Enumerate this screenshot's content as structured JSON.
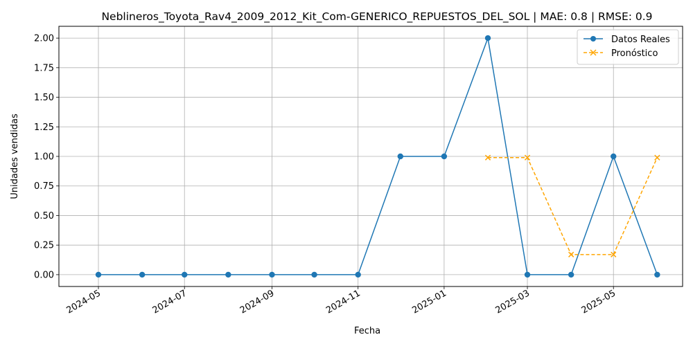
{
  "chart_data": {
    "type": "line",
    "title": "Neblineros_Toyota_Rav4_2009_2012_Kit_Com-GENERICO_REPUESTOS_DEL_SOL | MAE: 0.8 | RMSE: 0.9",
    "xlabel": "Fecha",
    "ylabel": "Unidades vendidas",
    "ylim": [
      -0.1,
      2.1
    ],
    "yticks": [
      "0.00",
      "0.25",
      "0.50",
      "0.75",
      "1.00",
      "1.25",
      "1.50",
      "1.75",
      "2.00"
    ],
    "ytick_values": [
      0,
      0.25,
      0.5,
      0.75,
      1.0,
      1.25,
      1.5,
      1.75,
      2.0
    ],
    "xticks": [
      "2024-05",
      "2024-07",
      "2024-09",
      "2024-11",
      "2025-01",
      "2025-03",
      "2025-05"
    ],
    "xtick_dates": [
      "2024-05-01",
      "2024-07-01",
      "2024-09-01",
      "2024-11-01",
      "2025-01-01",
      "2025-03-01",
      "2025-05-01"
    ],
    "xlim": [
      "2024-04-03",
      "2025-06-19"
    ],
    "grid": true,
    "legend_position": "top-right",
    "series": [
      {
        "name": "Datos Reales",
        "color": "#1f77b4",
        "style": "solid",
        "marker": "circle",
        "x": [
          "2024-05-01",
          "2024-06-01",
          "2024-07-01",
          "2024-08-01",
          "2024-09-01",
          "2024-10-01",
          "2024-11-01",
          "2024-12-01",
          "2025-01-01",
          "2025-02-01",
          "2025-03-01",
          "2025-04-01",
          "2025-05-01",
          "2025-06-01"
        ],
        "values": [
          0,
          0,
          0,
          0,
          0,
          0,
          0,
          1,
          1,
          2,
          0,
          0,
          1,
          0
        ]
      },
      {
        "name": "Pronóstico",
        "color": "#ffa500",
        "style": "dashed",
        "marker": "x",
        "x": [
          "2025-02-01",
          "2025-03-01",
          "2025-04-01",
          "2025-05-01",
          "2025-06-01"
        ],
        "values": [
          0.99,
          0.99,
          0.17,
          0.17,
          0.99
        ]
      }
    ]
  }
}
